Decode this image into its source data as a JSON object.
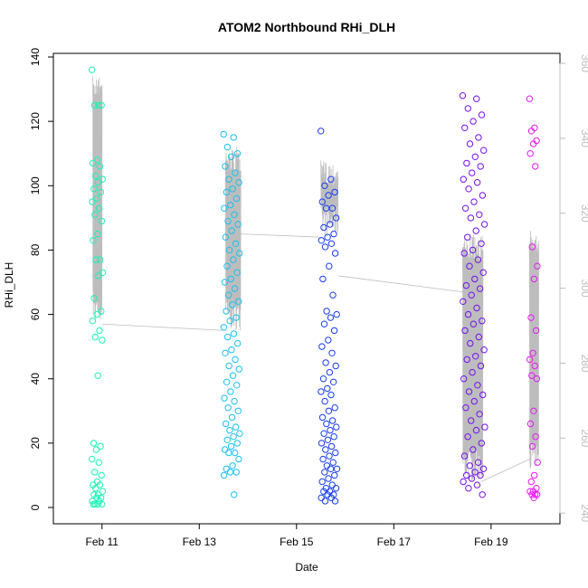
{
  "chart_data": {
    "type": "scatter",
    "title": "ATOM2 Northbound RHi_DLH",
    "xlabel": "Date",
    "ylabel": "RHi_DLH",
    "x_ticks": [
      "Feb 11",
      "Feb 13",
      "Feb 15",
      "Feb 17",
      "Feb 19"
    ],
    "y_ticks": [
      "0",
      "20",
      "40",
      "60",
      "80",
      "100",
      "120",
      "140"
    ],
    "y2_ticks": [
      "240",
      "260",
      "280",
      "300",
      "320",
      "340",
      "360"
    ],
    "xlim": [
      "2016-02-10 00:00",
      "2016-02-20 10:00"
    ],
    "ylim": [
      0,
      140
    ],
    "y2lim": [
      241.5,
      361.7
    ],
    "grid": false,
    "legend": "none",
    "point_style": "open circle, color gradient over time (green to cyan to blue to purple to magenta)",
    "secondary_trace": {
      "axis": "right",
      "color": "#bdbdbd",
      "style": "thin line"
    },
    "series": [
      {
        "flight": 1,
        "color": "#1cf2b6",
        "x_range": [
          "2016-02-10 19:00",
          "2016-02-11 00:30"
        ],
        "values": [
          136,
          125,
          125,
          125,
          108,
          107,
          106,
          103,
          102,
          101,
          99,
          98,
          96,
          95,
          93,
          91,
          89,
          85,
          83,
          77,
          77,
          73,
          72,
          65,
          61,
          60,
          58,
          55,
          53,
          52,
          41,
          20,
          19,
          18,
          15,
          14,
          11,
          10,
          8,
          7,
          7,
          6,
          5,
          4,
          4,
          3,
          3,
          2,
          2,
          1,
          1,
          1,
          1
        ]
      },
      {
        "flight": 2,
        "color": "#1bc0ee",
        "x_range": [
          "2016-02-13 12:00",
          "2016-02-13 20:00"
        ],
        "values": [
          116,
          115,
          112,
          110,
          109,
          106,
          104,
          102,
          101,
          99,
          98,
          96,
          94,
          93,
          91,
          89,
          88,
          86,
          84,
          82,
          80,
          79,
          77,
          75,
          73,
          71,
          70,
          68,
          66,
          64,
          63,
          61,
          59,
          58,
          56,
          54,
          53,
          51,
          49,
          48,
          46,
          44,
          43,
          41,
          39,
          38,
          36,
          34,
          33,
          31,
          30,
          28,
          26,
          25,
          24,
          23,
          22,
          21,
          20,
          19,
          18,
          17,
          17,
          15,
          13,
          12,
          11,
          11,
          10,
          4
        ]
      },
      {
        "flight": 3,
        "color": "#1a3ef0",
        "x_range": [
          "2016-02-15 12:00",
          "2016-02-15 20:00"
        ],
        "values": [
          117,
          102,
          100,
          98,
          97,
          95,
          93,
          93,
          90,
          88,
          87,
          85,
          84,
          83,
          82,
          81,
          79,
          75,
          71,
          66,
          61,
          60,
          59,
          57,
          55,
          52,
          50,
          48,
          45,
          44,
          42,
          40,
          39,
          37,
          36,
          35,
          33,
          31,
          30,
          28,
          27,
          26,
          25,
          24,
          23,
          22,
          21,
          20,
          19,
          18,
          17,
          16,
          15,
          14,
          13,
          12,
          12,
          11,
          10,
          9,
          8,
          7,
          6,
          6,
          5,
          5,
          4,
          4,
          3,
          3,
          2,
          2
        ]
      },
      {
        "flight": 4,
        "color": "#7411ef",
        "x_range": [
          "2016-02-18 10:00",
          "2016-02-18 21:00"
        ],
        "values": [
          128,
          127,
          124,
          122,
          120,
          118,
          115,
          113,
          111,
          109,
          107,
          106,
          104,
          102,
          101,
          99,
          97,
          95,
          93,
          91,
          90,
          88,
          86,
          84,
          82,
          80,
          79,
          77,
          75,
          73,
          71,
          69,
          68,
          66,
          64,
          62,
          60,
          58,
          57,
          55,
          53,
          51,
          49,
          47,
          46,
          44,
          42,
          40,
          38,
          36,
          35,
          33,
          31,
          29,
          27,
          25,
          24,
          22,
          20,
          18,
          16,
          14,
          13,
          12,
          11,
          10,
          10,
          9,
          8,
          7,
          6,
          4
        ]
      },
      {
        "flight": 5,
        "color": "#e51af2",
        "x_range": [
          "2016-02-19 19:00",
          "2016-02-19 23:00"
        ],
        "values": [
          127,
          118,
          117,
          114,
          113,
          110,
          106,
          81,
          75,
          71,
          59,
          55,
          48,
          46,
          44,
          41,
          40,
          30,
          26,
          22,
          19,
          14,
          10,
          8,
          6,
          5,
          5,
          4,
          4,
          4,
          3
        ]
      }
    ]
  }
}
